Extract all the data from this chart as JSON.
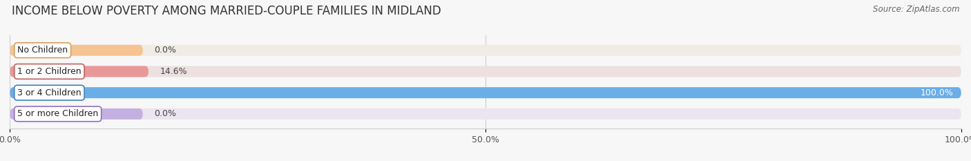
{
  "title": "INCOME BELOW POVERTY AMONG MARRIED-COUPLE FAMILIES IN MIDLAND",
  "source": "Source: ZipAtlas.com",
  "categories": [
    "No Children",
    "1 or 2 Children",
    "3 or 4 Children",
    "5 or more Children"
  ],
  "values": [
    0.0,
    14.6,
    100.0,
    0.0
  ],
  "bar_colors": [
    "#f5c491",
    "#e89898",
    "#6aaee8",
    "#c4b0e0"
  ],
  "bar_bg_colors": [
    "#f0ebe5",
    "#ede0e0",
    "#e0eaf5",
    "#eae5f0"
  ],
  "label_border_colors": [
    "#d4a060",
    "#c06060",
    "#4080c0",
    "#9070c0"
  ],
  "xlim": [
    0,
    100
  ],
  "xtick_labels": [
    "0.0%",
    "50.0%",
    "100.0%"
  ],
  "xtick_values": [
    0,
    50,
    100
  ],
  "bar_height": 0.52,
  "background_color": "#f7f7f7",
  "title_fontsize": 12,
  "label_fontsize": 9,
  "value_fontsize": 9,
  "source_fontsize": 8.5
}
